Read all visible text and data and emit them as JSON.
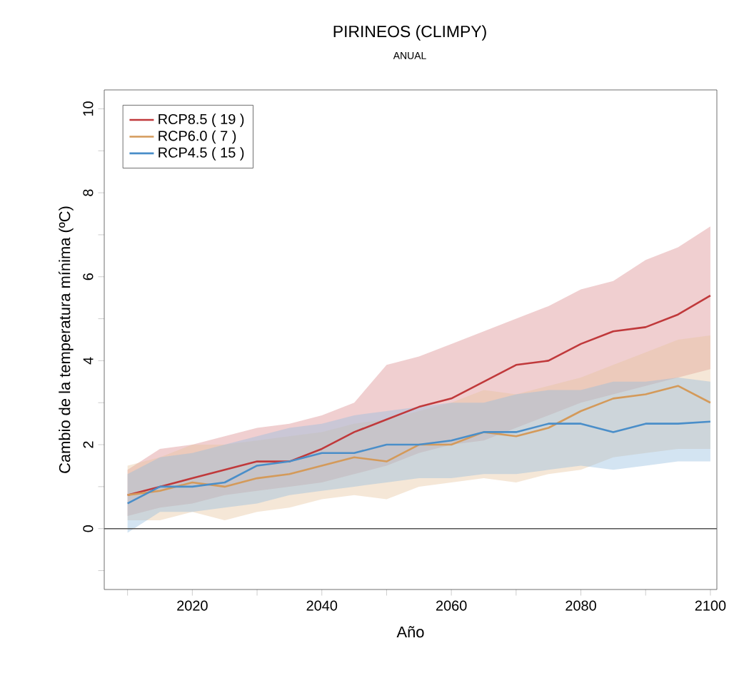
{
  "chart_data": {
    "type": "line",
    "title": "PIRINEOS (CLIMPY)",
    "subtitle": "ANUAL",
    "xlabel": "Año",
    "ylabel": "Cambio de la temperatura mínima (ºC)",
    "x": [
      2010,
      2015,
      2020,
      2025,
      2030,
      2035,
      2040,
      2045,
      2050,
      2055,
      2060,
      2065,
      2070,
      2075,
      2080,
      2085,
      2090,
      2095,
      2100
    ],
    "series": [
      {
        "name": "RCP8.5 ( 19 )",
        "color": "#c0393b",
        "values": [
          0.8,
          1.0,
          1.2,
          1.4,
          1.6,
          1.6,
          1.9,
          2.3,
          2.6,
          2.9,
          3.1,
          3.5,
          3.9,
          4.0,
          4.4,
          4.7,
          4.8,
          5.1,
          5.55
        ],
        "upper": [
          1.4,
          1.9,
          2.0,
          2.2,
          2.4,
          2.5,
          2.7,
          3.0,
          3.9,
          4.1,
          4.4,
          4.7,
          5.0,
          5.3,
          5.7,
          5.9,
          6.4,
          6.7,
          7.2
        ],
        "lower": [
          0.3,
          0.5,
          0.6,
          0.8,
          0.9,
          1.0,
          1.1,
          1.3,
          1.5,
          1.8,
          2.0,
          2.1,
          2.4,
          2.7,
          3.0,
          3.2,
          3.4,
          3.6,
          3.8
        ]
      },
      {
        "name": "RCP6.0 (  7 )",
        "color": "#d49a5a",
        "values": [
          0.8,
          0.9,
          1.1,
          1.0,
          1.2,
          1.3,
          1.5,
          1.7,
          1.6,
          2.0,
          2.0,
          2.3,
          2.2,
          2.4,
          2.8,
          3.1,
          3.2,
          3.4,
          3.0
        ],
        "upper": [
          1.5,
          1.7,
          2.0,
          2.0,
          2.1,
          2.2,
          2.3,
          2.5,
          2.6,
          2.8,
          3.0,
          3.3,
          3.2,
          3.4,
          3.6,
          3.9,
          4.2,
          4.5,
          4.6
        ],
        "lower": [
          0.2,
          0.2,
          0.4,
          0.2,
          0.4,
          0.5,
          0.7,
          0.8,
          0.7,
          1.0,
          1.1,
          1.2,
          1.1,
          1.3,
          1.4,
          1.7,
          1.8,
          1.9,
          1.9
        ]
      },
      {
        "name": "RCP4.5 ( 15 )",
        "color": "#4a8ec9",
        "values": [
          0.6,
          1.0,
          1.0,
          1.1,
          1.5,
          1.6,
          1.8,
          1.8,
          2.0,
          2.0,
          2.1,
          2.3,
          2.3,
          2.5,
          2.5,
          2.3,
          2.5,
          2.5,
          2.55
        ],
        "upper": [
          1.3,
          1.7,
          1.8,
          2.0,
          2.2,
          2.4,
          2.5,
          2.7,
          2.8,
          2.9,
          3.0,
          3.0,
          3.2,
          3.3,
          3.3,
          3.5,
          3.5,
          3.6,
          3.5
        ],
        "lower": [
          -0.1,
          0.4,
          0.4,
          0.5,
          0.6,
          0.8,
          0.9,
          1.0,
          1.1,
          1.2,
          1.2,
          1.3,
          1.3,
          1.4,
          1.5,
          1.4,
          1.5,
          1.6,
          1.6
        ]
      }
    ],
    "xlim": [
      2006.4,
      2101
    ],
    "ylim": [
      -1.45,
      10.45
    ],
    "xticks": [
      {
        "value": 2010,
        "label": null
      },
      2020,
      {
        "value": 2030,
        "label": null
      },
      2040,
      {
        "value": 2050,
        "label": null
      },
      2060,
      {
        "value": 2070,
        "label": null
      },
      2080,
      {
        "value": 2090,
        "label": null
      },
      2100
    ],
    "yticks": [
      {
        "value": -1,
        "label": null
      },
      0,
      {
        "value": 1,
        "label": null
      },
      2,
      {
        "value": 3,
        "label": null
      },
      4,
      {
        "value": 5,
        "label": null
      },
      6,
      {
        "value": 7,
        "label": null
      },
      8,
      {
        "value": 9,
        "label": null
      },
      10
    ],
    "ref_lines": [
      {
        "axis": "y",
        "value": 0,
        "color": "#555555"
      }
    ],
    "legend": "top left",
    "line_style": "solid",
    "marker": "none",
    "grid": false
  }
}
